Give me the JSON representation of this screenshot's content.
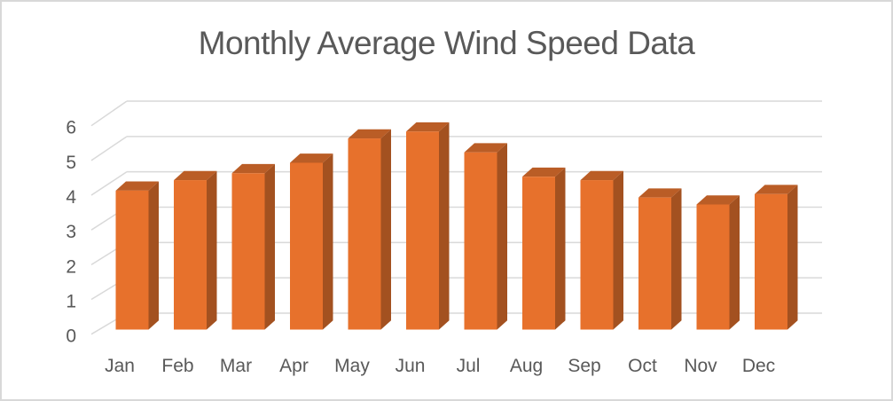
{
  "window": {
    "background": "#ffffff",
    "border_color": "#d8d8d8"
  },
  "chart_data": {
    "type": "bar",
    "style": "3d-column",
    "title": "Monthly Average Wind Speed Data",
    "categories": [
      "Jan",
      "Feb",
      "Mar",
      "Apr",
      "May",
      "Jun",
      "Jul",
      "Aug",
      "Sep",
      "Oct",
      "Nov",
      "Dec"
    ],
    "series": [
      {
        "name": "Monthly Average Wind Speed",
        "values": [
          4.0,
          4.3,
          4.5,
          4.8,
          5.5,
          5.7,
          5.1,
          4.4,
          4.3,
          3.8,
          3.6,
          3.9
        ]
      }
    ],
    "xlabel": "",
    "ylabel": "",
    "y_ticks": [
      0,
      1,
      2,
      3,
      4,
      5,
      6
    ],
    "ylim": [
      0,
      6
    ],
    "grid": true,
    "legend": "none",
    "colors": {
      "bar_front": "#e7712c",
      "bar_side": "#a35120",
      "bar_top": "#ba5d26",
      "gridline": "#d9d9d9",
      "axis_text": "#595959",
      "title_text": "#595959"
    }
  }
}
